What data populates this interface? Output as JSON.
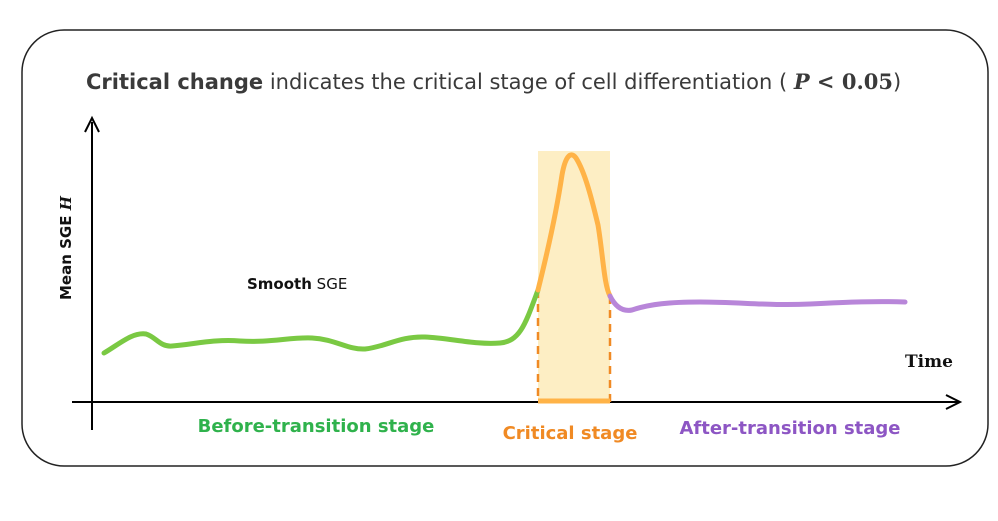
{
  "title": {
    "bold": "Critical change",
    "rest": " indicates the critical stage  of cell differentiation (",
    "math_p": "P",
    "math_lt": " < ",
    "math_val": "0.05",
    "close": ")"
  },
  "axes": {
    "y_label": "Mean SGE",
    "y_label_var": "H",
    "x_label": "Time"
  },
  "annotation": {
    "bold": "Smooth",
    "rest": " SGE"
  },
  "stages": {
    "before": "Before-transition stage",
    "critical": "Critical stage",
    "after": "After-transition stage"
  },
  "colors": {
    "before": "#7ac943",
    "critical": "#ffb347",
    "critical_fill": "#fdeec4",
    "critical_dash": "#f08a24",
    "after": "#b886d9",
    "before_label": "#2fb24c",
    "critical_label": "#f08a24",
    "after_label": "#8d56c4"
  }
}
